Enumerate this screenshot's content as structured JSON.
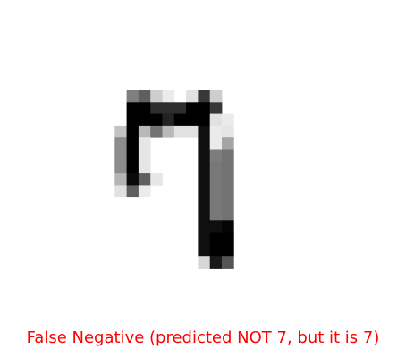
{
  "figure": {
    "caption": "False Negative (predicted NOT 7, but it is 7)",
    "caption_color": "#ff0000",
    "digit_image": {
      "colormap": "gray_r",
      "intensity_scale_max": 255,
      "rows": [
        [
          0,
          0,
          128,
          160,
          50,
          20,
          0,
          30,
          200,
          50,
          0
        ],
        [
          0,
          0,
          255,
          255,
          210,
          210,
          210,
          255,
          255,
          200,
          0
        ],
        [
          0,
          0,
          255,
          255,
          255,
          220,
          255,
          255,
          255,
          30,
          20
        ],
        [
          0,
          60,
          255,
          70,
          140,
          70,
          30,
          30,
          240,
          20,
          25
        ],
        [
          0,
          115,
          255,
          25,
          0,
          0,
          0,
          0,
          240,
          20,
          90
        ],
        [
          0,
          115,
          255,
          25,
          0,
          0,
          0,
          0,
          240,
          130,
          140
        ],
        [
          0,
          115,
          255,
          25,
          0,
          0,
          0,
          0,
          240,
          135,
          140
        ],
        [
          0,
          75,
          245,
          160,
          25,
          0,
          0,
          0,
          240,
          135,
          140
        ],
        [
          0,
          30,
          160,
          20,
          0,
          0,
          0,
          0,
          240,
          135,
          140
        ],
        [
          0,
          0,
          0,
          0,
          0,
          0,
          0,
          0,
          240,
          135,
          140
        ],
        [
          0,
          0,
          0,
          0,
          0,
          0,
          0,
          0,
          240,
          135,
          140
        ],
        [
          0,
          0,
          0,
          0,
          0,
          0,
          0,
          0,
          240,
          240,
          250
        ],
        [
          0,
          0,
          0,
          0,
          0,
          0,
          0,
          0,
          240,
          255,
          255
        ],
        [
          0,
          0,
          0,
          0,
          0,
          0,
          0,
          0,
          240,
          255,
          255
        ],
        [
          0,
          0,
          0,
          0,
          0,
          0,
          0,
          0,
          40,
          230,
          170
        ]
      ]
    }
  }
}
